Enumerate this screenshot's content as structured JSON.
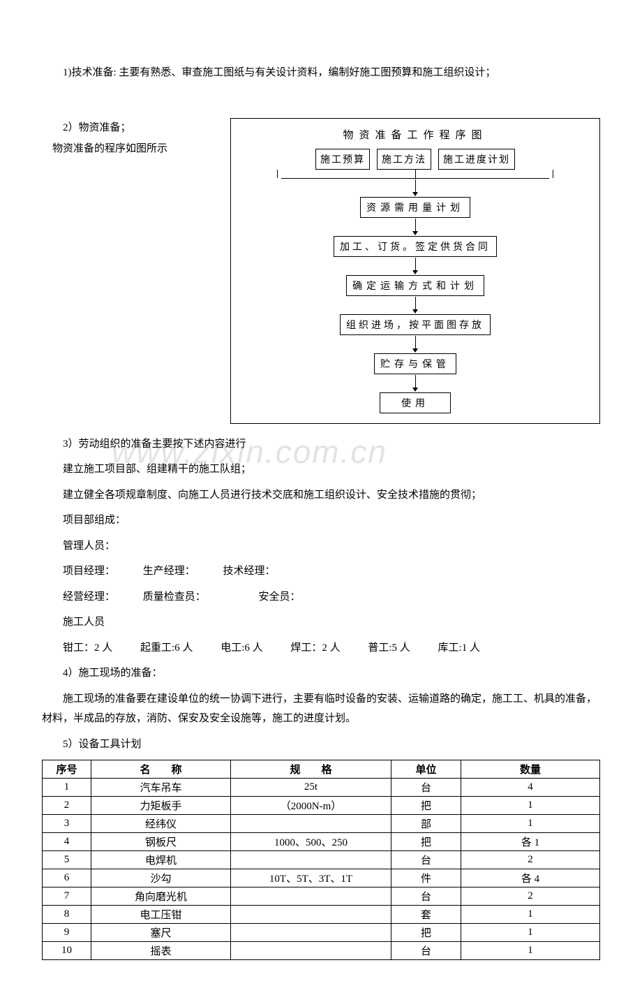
{
  "section1": {
    "text": "1)技术准备: 主要有熟悉、审查施工图纸与有关设计资料，编制好施工图预算和施工组织设计；"
  },
  "section2": {
    "line1": "2）物资准备；",
    "line2": "物资准备的程序如图所示"
  },
  "flowchart": {
    "title": "物资准备工作程序图",
    "row1": {
      "b1": "施工预算",
      "b2": "施工方法",
      "b3": "施工进度计划"
    },
    "box2": "资源需用量计划",
    "box3": "加工、订货。签定供货合同",
    "box4": "确定运输方式和计划",
    "box5": "组织进场，按平面图存放",
    "box6": "贮存与保管",
    "box7": "使用"
  },
  "section3": {
    "l1": "3）劳动组织的准备主要按下述内容进行",
    "l2": "建立施工项目部、组建精干的施工队组；",
    "l3": "建立健全各项规章制度、向施工人员进行技术交底和施工组织设计、安全技术措施的贯彻；",
    "l4": "项目部组成：",
    "l5": "管理人员：",
    "l6a": "项目经理：",
    "l6b": "生产经理：",
    "l6c": "技术经理：",
    "l7a": "经营经理：",
    "l7b": "质量检查员：",
    "l7c": "安全员：",
    "l8": "施工人员",
    "l9a": "钳工：2 人",
    "l9b": "起重工:6 人",
    "l9c": "电工:6 人",
    "l9d": "焊工：2 人",
    "l9e": "普工:5 人",
    "l9f": "库工:1 人"
  },
  "section4": {
    "l1": "4）施工现场的准备：",
    "l2": "施工现场的准备要在建设单位的统一协调下进行，主要有临时设备的安装、运输道路的确定，施工工、机具的准备，材料，半成品的存放，消防、保安及安全设施等，施工的进度计划。"
  },
  "section5": {
    "l1": "5）设备工具计划"
  },
  "table": {
    "headers": {
      "c1": "序号",
      "c2": "名　　称",
      "c3": "规　　格",
      "c4": "单位",
      "c5": "数量"
    },
    "rows": [
      {
        "n": "1",
        "name": "汽车吊车",
        "spec": "25t",
        "unit": "台",
        "qty": "4"
      },
      {
        "n": "2",
        "name": "力矩板手",
        "spec": "（2000N-m）",
        "unit": "把",
        "qty": "1"
      },
      {
        "n": "3",
        "name": "经纬仪",
        "spec": "",
        "unit": "部",
        "qty": "1"
      },
      {
        "n": "4",
        "name": "钢板尺",
        "spec": "1000、500、250",
        "unit": "把",
        "qty": "各 1"
      },
      {
        "n": "5",
        "name": "电焊机",
        "spec": "",
        "unit": "台",
        "qty": "2"
      },
      {
        "n": "6",
        "name": "沙勾",
        "spec": "10T、5T、3T、1T",
        "unit": "件",
        "qty": "各 4"
      },
      {
        "n": "7",
        "name": "角向磨光机",
        "spec": "",
        "unit": "台",
        "qty": "2"
      },
      {
        "n": "8",
        "name": "电工压钳",
        "spec": "",
        "unit": "套",
        "qty": "1"
      },
      {
        "n": "9",
        "name": "塞尺",
        "spec": "",
        "unit": "把",
        "qty": "1"
      },
      {
        "n": "10",
        "name": "摇表",
        "spec": "",
        "unit": "台",
        "qty": "1"
      }
    ]
  },
  "watermark": "www.zixin.com.cn",
  "colors": {
    "text": "#000000",
    "bg": "#ffffff",
    "border": "#000000",
    "wm": "rgba(128,128,128,0.22)"
  }
}
